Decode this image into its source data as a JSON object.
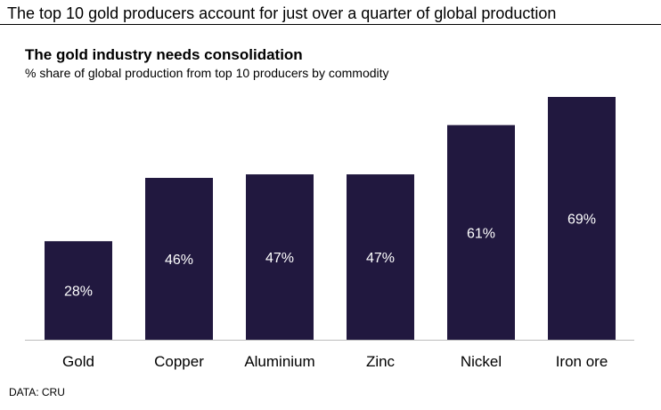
{
  "headline": "The top 10 gold producers account for just over a quarter of global production",
  "source": "DATA: CRU",
  "colors": {
    "bar": "#21183f",
    "bar_label": "#ffffff",
    "axis": "#bdbdbd",
    "rule": "#000000"
  },
  "chart_data": {
    "type": "bar",
    "title": "The gold industry needs consolidation",
    "subtitle": "% share of global production from top 10 producers by commodity",
    "xlabel": "",
    "ylabel": "",
    "ylim": [
      0,
      69
    ],
    "categories": [
      "Gold",
      "Copper",
      "Aluminium",
      "Zinc",
      "Nickel",
      "Iron ore"
    ],
    "values": [
      28,
      46,
      47,
      47,
      61,
      69
    ],
    "value_labels": [
      "28%",
      "46%",
      "47%",
      "47%",
      "61%",
      "69%"
    ],
    "grid": false,
    "legend": "none"
  }
}
